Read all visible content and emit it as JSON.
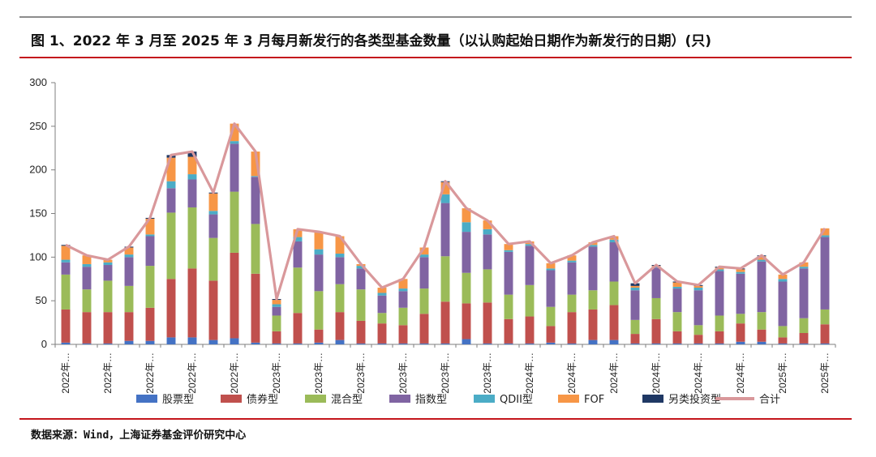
{
  "title": "图 1、2022 年 3 月至 2025 年 3 月每月新发行的各类型基金数量（以认购起始日期作为新发行的日期）(只)",
  "source": "数据来源：Wind，上海证券基金评价研究中心",
  "chart_data": {
    "type": "bar",
    "stacked": true,
    "ylim": [
      0,
      300
    ],
    "yticks": [
      0,
      50,
      100,
      150,
      200,
      250,
      300
    ],
    "grid": false,
    "legend_position": "bottom",
    "categories": [
      "2022年…",
      "2022年…",
      "2022年…",
      "2022年…",
      "2022年…",
      "2022年…",
      "2022年…",
      "2022年…",
      "2022年…",
      "2022年…",
      "2023年…",
      "2023年…",
      "2023年…",
      "2023年…",
      "2023年…",
      "2023年…",
      "2023年…",
      "2023年…",
      "2023年…",
      "2023年…",
      "2023年…",
      "2023年…",
      "2024年…",
      "2024年…",
      "2024年…",
      "2024年…",
      "2024年…",
      "2024年…",
      "2024年…",
      "2024年…",
      "2024年…",
      "2024年…",
      "2024年…",
      "2024年…",
      "2025年…",
      "2025年…",
      "2025年…"
    ],
    "tick_labels": [
      "2022年…",
      "",
      "2022年…",
      "",
      "2022年…",
      "",
      "2022年…",
      "",
      "2022年…",
      "",
      "2023年…",
      "",
      "2023年…",
      "",
      "2023年…",
      "",
      "2023年…",
      "",
      "2023年…",
      "",
      "2023年…",
      "",
      "2024年…",
      "",
      "2024年…",
      "",
      "2024年…",
      "",
      "2024年…",
      "",
      "2024年…",
      "",
      "2024年…",
      "",
      "2025年…",
      "",
      "2025年…"
    ],
    "series": [
      {
        "name": "股票型",
        "color": "#4472c4",
        "values": [
          2,
          1,
          1,
          4,
          4,
          8,
          8,
          5,
          7,
          2,
          1,
          1,
          2,
          5,
          1,
          1,
          1,
          1,
          1,
          6,
          1,
          1,
          1,
          2,
          1,
          5,
          5,
          1,
          1,
          1,
          1,
          1,
          3,
          3,
          1,
          1,
          1
        ]
      },
      {
        "name": "债券型",
        "color": "#c0504d",
        "values": [
          38,
          36,
          36,
          33,
          38,
          67,
          79,
          68,
          98,
          79,
          14,
          35,
          15,
          32,
          26,
          23,
          21,
          34,
          48,
          41,
          47,
          28,
          31,
          19,
          36,
          35,
          40,
          11,
          28,
          14,
          10,
          14,
          21,
          14,
          7,
          12,
          22
        ]
      },
      {
        "name": "混合型",
        "color": "#9bbb59",
        "values": [
          40,
          26,
          36,
          30,
          48,
          76,
          70,
          49,
          70,
          57,
          18,
          52,
          44,
          32,
          36,
          12,
          20,
          29,
          52,
          35,
          38,
          28,
          36,
          22,
          20,
          22,
          27,
          16,
          24,
          22,
          11,
          18,
          11,
          20,
          13,
          17,
          17
        ]
      },
      {
        "name": "指数型",
        "color": "#8064a2",
        "values": [
          14,
          26,
          18,
          33,
          34,
          28,
          32,
          27,
          55,
          54,
          10,
          30,
          42,
          31,
          24,
          20,
          19,
          36,
          61,
          47,
          40,
          49,
          45,
          42,
          37,
          50,
          45,
          34,
          35,
          27,
          40,
          51,
          46,
          58,
          51,
          57,
          83
        ]
      },
      {
        "name": "QDII型",
        "color": "#4bacc6",
        "values": [
          3,
          3,
          3,
          3,
          2,
          8,
          6,
          4,
          3,
          1,
          3,
          5,
          6,
          4,
          3,
          3,
          3,
          3,
          10,
          11,
          6,
          2,
          2,
          2,
          2,
          2,
          3,
          3,
          1,
          2,
          3,
          2,
          2,
          2,
          3,
          2,
          2
        ]
      },
      {
        "name": "FOF",
        "color": "#f79646",
        "values": [
          16,
          10,
          3,
          8,
          18,
          27,
          20,
          20,
          20,
          28,
          5,
          9,
          20,
          20,
          2,
          6,
          11,
          8,
          14,
          16,
          10,
          7,
          3,
          6,
          6,
          3,
          4,
          2,
          1,
          5,
          2,
          2,
          3,
          4,
          5,
          5,
          8
        ]
      },
      {
        "name": "另类投资型",
        "color": "#1f3864",
        "values": [
          1,
          0,
          0,
          1,
          1,
          3,
          6,
          1,
          0,
          0,
          1,
          0,
          0,
          0,
          0,
          0,
          0,
          0,
          1,
          0,
          0,
          0,
          0,
          0,
          0,
          0,
          0,
          3,
          1,
          1,
          1,
          1,
          1,
          1,
          0,
          0,
          0
        ]
      }
    ],
    "total": {
      "name": "合计",
      "color": "#d9989b",
      "values": [
        114,
        102,
        97,
        112,
        145,
        217,
        221,
        174,
        253,
        221,
        52,
        132,
        129,
        124,
        92,
        65,
        75,
        111,
        187,
        156,
        142,
        115,
        118,
        93,
        102,
        117,
        124,
        70,
        91,
        72,
        68,
        89,
        87,
        102,
        80,
        94,
        133
      ]
    }
  }
}
